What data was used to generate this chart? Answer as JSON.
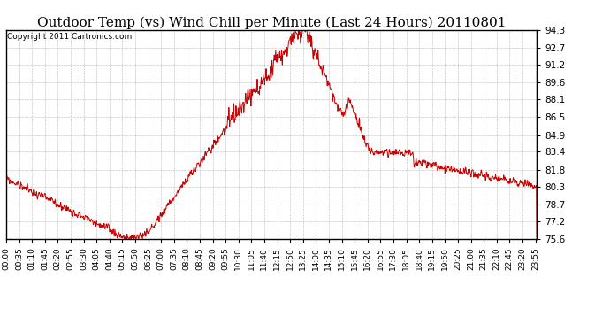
{
  "title": "Outdoor Temp (vs) Wind Chill per Minute (Last 24 Hours) 20110801",
  "copyright": "Copyright 2011 Cartronics.com",
  "line_color": "#cc0000",
  "background_color": "#ffffff",
  "grid_color": "#b0b0b0",
  "ylim": [
    75.6,
    94.3
  ],
  "yticks": [
    75.6,
    77.2,
    78.7,
    80.3,
    81.8,
    83.4,
    84.9,
    86.5,
    88.1,
    89.6,
    91.2,
    92.7,
    94.3
  ],
  "title_fontsize": 11,
  "copyright_fontsize": 6.5,
  "tick_fontsize": 6.5,
  "ytick_fontsize": 7.5
}
